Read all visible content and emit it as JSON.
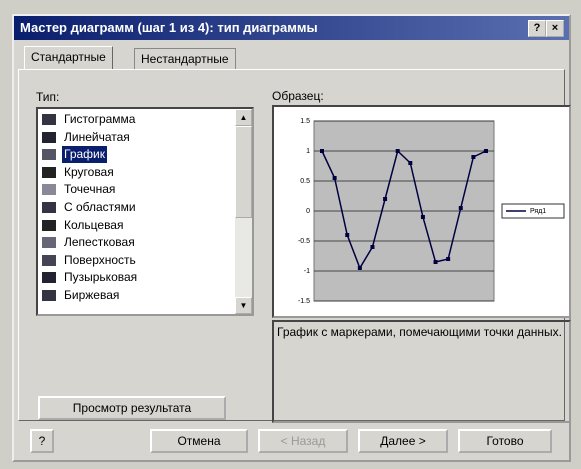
{
  "window": {
    "title": "Мастер диаграмм (шаг 1 из 4): тип диаграммы",
    "help_button": "?"
  },
  "tabs": [
    "Стандартные",
    "Нестандартные"
  ],
  "type_label": "Тип:",
  "types": [
    "Гистограмма",
    "Линейчатая",
    "График",
    "Круговая",
    "Точечная",
    "С областями",
    "Кольцевая",
    "Лепестковая",
    "Поверхность",
    "Пузырьковая",
    "Биржевая"
  ],
  "selected_type": 2,
  "preview_label": "Образец:",
  "preview_chart": {
    "type": "line",
    "series": [
      {
        "name": "Ряд1",
        "color": "#000040",
        "values": [
          1,
          0.55,
          -0.4,
          -0.95,
          -0.6,
          0.2,
          1,
          0.8,
          -0.1,
          -0.85,
          -0.8,
          0.05,
          0.9,
          1
        ]
      }
    ],
    "ylim": [
      -1.5,
      1.5
    ],
    "yticks": [
      -1.5,
      -1,
      -0.5,
      0,
      0.5,
      1,
      1.5
    ],
    "grid": true
  },
  "description": "График с маркерами, помечающими точки данных.",
  "preview_button": "Просмотр результата",
  "buttons": [
    "Отмена",
    "< Назад",
    "Далее >",
    "Готово"
  ]
}
